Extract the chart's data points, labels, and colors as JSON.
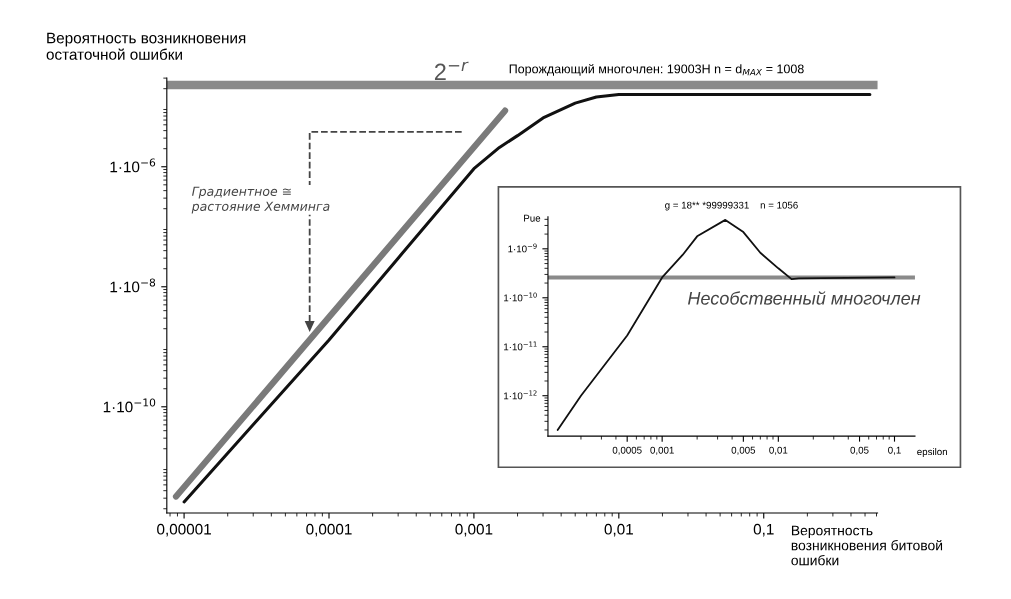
{
  "chart_data": [
    {
      "type": "line",
      "title": "Порождающий многочлен: 19003H n = d$_{MAX}$ = 1008",
      "xlabel": "Вероятность\nвозникновения битовой\nошибки",
      "ylabel": "Вероятность возникновения\nостаточной ошибки",
      "log": "xy",
      "grid": false,
      "legend": false,
      "xlim": [
        7.6e-06,
        0.61
      ],
      "ylim": [
        1.7e-12,
        3e-05
      ],
      "xticks": [
        {
          "value": 1e-05,
          "label": "0,00001"
        },
        {
          "value": 0.0001,
          "label": "0,0001"
        },
        {
          "value": 0.001,
          "label": "0,001"
        },
        {
          "value": 0.01,
          "label": "0,01"
        },
        {
          "value": 0.1,
          "label": "0,1"
        }
      ],
      "yticks": [
        {
          "value": 1e-10,
          "label": "1·10$^{−10}$"
        },
        {
          "value": 1e-08,
          "label": "1·10$^{−8}$"
        },
        {
          "value": 1e-06,
          "label": "1·10$^{−6}$"
        }
      ],
      "ref_lines": [
        {
          "axis": "y",
          "value": 2.3e-05,
          "label": "2$^{−r}$",
          "color": "#8a8a8a"
        }
      ],
      "annotations": [
        "Градиентное ≅\nрастояние Хемминга"
      ],
      "series": [
        {
          "color": "#7a7a7a",
          "x": [
            8.8e-06,
            0.00164
          ],
          "values": [
            3.2e-12,
            8.6e-06
          ]
        },
        {
          "color": "#111111",
          "x": [
            1e-05,
            0.0001,
            0.0003,
            0.001,
            0.0015,
            0.002,
            0.003,
            0.005,
            0.007,
            0.01,
            0.54
          ],
          "values": [
            2.6e-12,
            1.3e-09,
            3e-08,
            9.3e-07,
            2.1e-06,
            3.3e-06,
            6.5e-06,
            1.15e-05,
            1.45e-05,
            1.6e-05,
            1.6e-05
          ]
        }
      ]
    },
    {
      "type": "line",
      "title": "g = 18** *99999331    n = 1056",
      "xlabel": "epsilon",
      "ylabel": "Pue",
      "log": "xy",
      "grid": false,
      "legend": false,
      "xlim": [
        0.000104,
        0.15
      ],
      "ylim": [
        1.5e-13,
        4.5e-09
      ],
      "xticks": [
        {
          "value": 0.0005,
          "label": "0,0005"
        },
        {
          "value": 0.001,
          "label": "0,001"
        },
        {
          "value": 0.005,
          "label": "0,005"
        },
        {
          "value": 0.01,
          "label": "0,01"
        },
        {
          "value": 0.05,
          "label": "0,05"
        },
        {
          "value": 0.1,
          "label": "0,1"
        }
      ],
      "yticks": [
        {
          "value": 1e-12,
          "label": "1·10$^{−12}$"
        },
        {
          "value": 1e-11,
          "label": "1·10$^{−11}$"
        },
        {
          "value": 1e-10,
          "label": "1·10$^{−10}$"
        },
        {
          "value": 1e-09,
          "label": "1·10$^{−9}$"
        }
      ],
      "ref_lines": [
        {
          "axis": "y",
          "value": 2.6e-10,
          "color": "#8a8a8a"
        }
      ],
      "annotations": [
        "Несобственный многочлен"
      ],
      "series": [
        {
          "color": "#111111",
          "x": [
            0.000126,
            0.0002,
            0.0005,
            0.001,
            0.0015,
            0.002,
            0.0035,
            0.005,
            0.007,
            0.01,
            0.013,
            0.015,
            0.1
          ],
          "values": [
            2e-13,
            1e-12,
            1.7e-11,
            2.6e-10,
            7.5e-10,
            1.8e-09,
            3.9e-09,
            2.2e-09,
            8.3e-10,
            4e-10,
            2.4e-10,
            2.5e-10,
            2.6e-10
          ]
        }
      ]
    }
  ]
}
